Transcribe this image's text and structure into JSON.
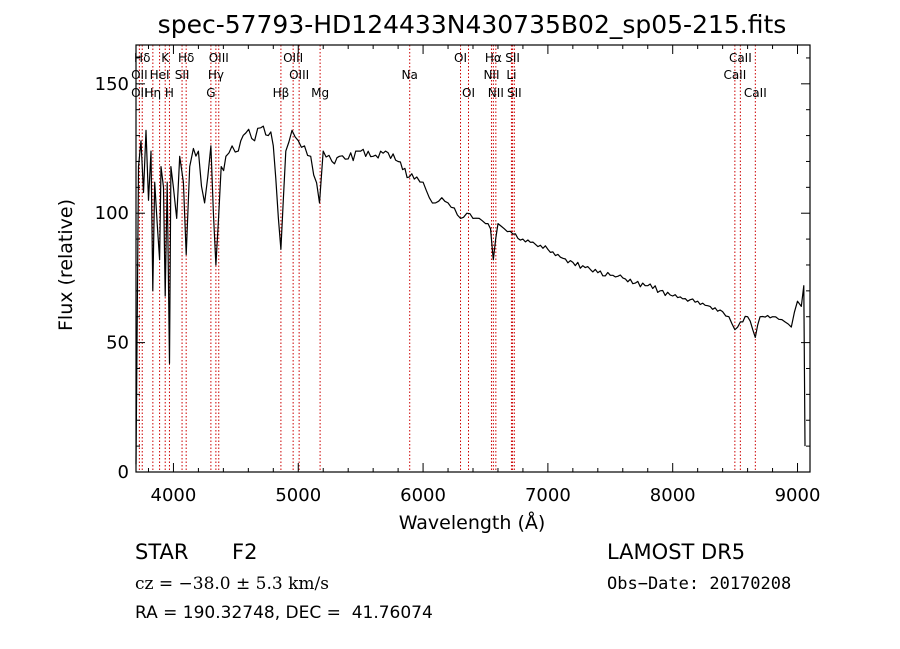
{
  "chart_data": {
    "type": "line",
    "title": "spec-57793-HD124433N430735B02_sp05-215.fits",
    "xlabel": "Wavelength (Å)",
    "ylabel": "Flux (relative)",
    "xlim": [
      3700,
      9100
    ],
    "ylim": [
      0,
      165
    ],
    "xticks": [
      4000,
      5000,
      6000,
      7000,
      8000,
      9000
    ],
    "yticks": [
      0,
      50,
      100,
      150
    ],
    "series": [
      {
        "x": [
          3700,
          3720,
          3740,
          3760,
          3780,
          3800,
          3820,
          3835,
          3850,
          3870,
          3889,
          3900,
          3920,
          3934,
          3950,
          3968,
          3980,
          4000,
          4026,
          4050,
          4080,
          4102,
          4130,
          4160,
          4200,
          4250,
          4300,
          4340,
          4383,
          4420,
          4470,
          4520,
          4580,
          4650,
          4700,
          4760,
          4800,
          4861,
          4900,
          4950,
          5000,
          5050,
          5100,
          5170,
          5200,
          5270,
          5330,
          5400,
          5500,
          5600,
          5700,
          5800,
          5890,
          5950,
          6000,
          6050,
          6100,
          6150,
          6200,
          6250,
          6300,
          6350,
          6400,
          6450,
          6500,
          6540,
          6563,
          6600,
          6650,
          6700,
          6800,
          6900,
          7000,
          7100,
          7200,
          7300,
          7400,
          7500,
          7600,
          7700,
          7800,
          7900,
          8000,
          8100,
          8200,
          8300,
          8400,
          8450,
          8498,
          8542,
          8600,
          8662,
          8700,
          8800,
          8850,
          8900,
          8950,
          9000,
          9030,
          9050,
          9060
        ],
        "y": [
          3,
          118,
          128,
          108,
          132,
          105,
          124,
          70,
          112,
          96,
          82,
          118,
          110,
          68,
          112,
          42,
          118,
          110,
          98,
          122,
          112,
          84,
          118,
          125,
          124,
          104,
          126,
          80,
          118,
          122,
          126,
          124,
          131,
          128,
          133,
          130,
          126,
          86,
          124,
          132,
          128,
          126,
          122,
          104,
          124,
          120,
          122,
          121,
          124,
          122,
          124,
          120,
          114,
          114,
          112,
          106,
          104,
          106,
          104,
          102,
          98,
          100,
          98,
          98,
          96,
          94,
          82,
          96,
          94,
          93,
          90,
          88,
          86,
          83,
          81,
          79,
          77,
          76,
          75,
          73,
          72,
          70,
          68,
          67,
          66,
          64,
          62,
          60,
          55,
          58,
          60,
          52,
          60,
          60,
          59,
          58,
          56,
          66,
          64,
          72,
          10
        ]
      }
    ],
    "spectral_lines": [
      {
        "label": "Hδ",
        "x": 3750,
        "row": 1
      },
      {
        "label": "K",
        "x": 3934,
        "row": 1
      },
      {
        "label": "Hδ",
        "x": 4102,
        "row": 1
      },
      {
        "label": "OIII",
        "x": 4363,
        "row": 1
      },
      {
        "label": "OIII",
        "x": 4959,
        "row": 1
      },
      {
        "label": "OI",
        "x": 6300,
        "row": 1
      },
      {
        "label": "Hα",
        "x": 6563,
        "row": 1
      },
      {
        "label": "SII",
        "x": 6717,
        "row": 1
      },
      {
        "label": "CaII",
        "x": 8542,
        "row": 1
      },
      {
        "label": "OII",
        "x": 3727,
        "row": 2
      },
      {
        "label": "HeI",
        "x": 3889,
        "row": 2
      },
      {
        "label": "SII",
        "x": 4069,
        "row": 2
      },
      {
        "label": "Hγ",
        "x": 4340,
        "row": 2
      },
      {
        "label": "OIII",
        "x": 5007,
        "row": 2
      },
      {
        "label": "Na",
        "x": 5893,
        "row": 2
      },
      {
        "label": "NII",
        "x": 6548,
        "row": 2
      },
      {
        "label": "Li",
        "x": 6708,
        "row": 2
      },
      {
        "label": "CaII",
        "x": 8498,
        "row": 2
      },
      {
        "label": "OII",
        "x": 3727,
        "row": 3
      },
      {
        "label": "Hη",
        "x": 3835,
        "row": 3
      },
      {
        "label": "H",
        "x": 3968,
        "row": 3
      },
      {
        "label": "G",
        "x": 4300,
        "row": 3
      },
      {
        "label": "Hβ",
        "x": 4861,
        "row": 3
      },
      {
        "label": "Mg",
        "x": 5175,
        "row": 3
      },
      {
        "label": "OI",
        "x": 6364,
        "row": 3
      },
      {
        "label": "NII",
        "x": 6583,
        "row": 3
      },
      {
        "label": "SII",
        "x": 6731,
        "row": 3
      },
      {
        "label": "CaII",
        "x": 8662,
        "row": 3
      }
    ],
    "line_colors": {
      "spectrum": "#000000",
      "marker": "#cc0000"
    }
  },
  "footer": {
    "class": "STAR",
    "subclass": "F2",
    "survey": "LAMOST DR5",
    "cz": "cz = −38.0 ± 5.3 km/s",
    "obs_date": "Obs−Date: 20170208",
    "coords": "RA = 190.32748, DEC =  41.76074"
  }
}
